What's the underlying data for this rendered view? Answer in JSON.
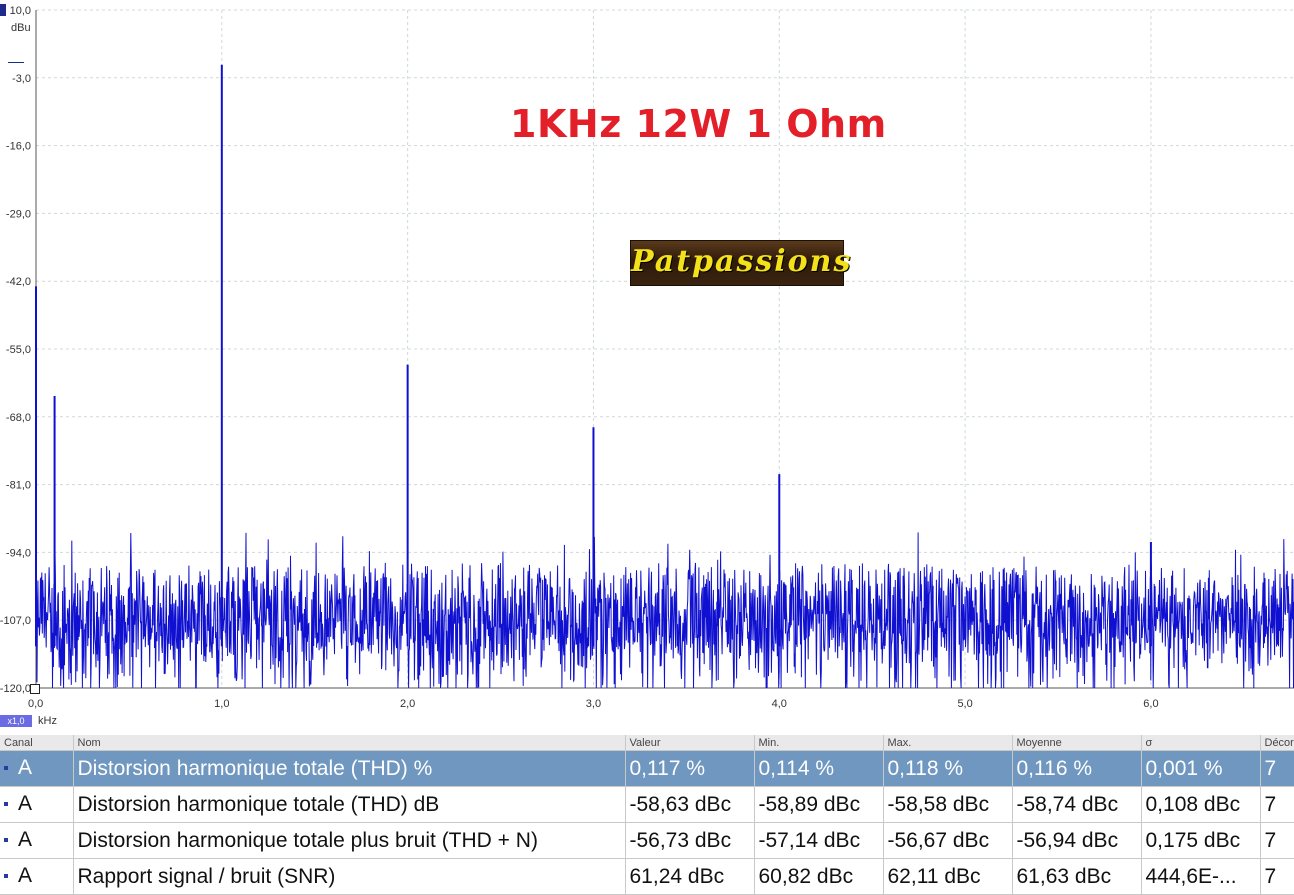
{
  "chart_data": {
    "type": "line",
    "title": "1KHz 12W 1 Ohm",
    "xlabel": "kHz",
    "ylabel": "dBu",
    "xlim": [
      0.0,
      6.77
    ],
    "ylim": [
      -120.0,
      10.0
    ],
    "y_ticks": [
      "10,0",
      "-3,0",
      "-16,0",
      "-29,0",
      "-42,0",
      "-55,0",
      "-68,0",
      "-81,0",
      "-94,0",
      "-107,0",
      "-120,0"
    ],
    "x_ticks": [
      "0,0",
      "1,0",
      "2,0",
      "3,0",
      "4,0",
      "5,0",
      "6,0"
    ],
    "grid": true,
    "series": [
      {
        "color": "#1010d0",
        "noise_floor_db": -104,
        "peaks": [
          {
            "x": 0.0,
            "y": -43
          },
          {
            "x": 0.1,
            "y": -64
          },
          {
            "x": 1.0,
            "y": -0.5
          },
          {
            "x": 2.0,
            "y": -58
          },
          {
            "x": 3.0,
            "y": -70
          },
          {
            "x": 4.0,
            "y": -79
          },
          {
            "x": 6.0,
            "y": -92
          }
        ]
      }
    ]
  },
  "zoom_label": "x1,0",
  "watermark": "Patpassions",
  "table": {
    "headers": [
      "Canal",
      "Nom",
      "Valeur",
      "Min.",
      "Max.",
      "Moyenne",
      "σ",
      "Décor"
    ],
    "rows": [
      {
        "canal": "A",
        "nom": "Distorsion harmonique totale (THD) %",
        "valeur": "0,117 %",
        "min": "0,114 %",
        "max": "0,118 %",
        "moyenne": "0,116 %",
        "sigma": "0,001 %",
        "decor": "7"
      },
      {
        "canal": "A",
        "nom": "Distorsion harmonique totale (THD) dB",
        "valeur": "-58,63 dBc",
        "min": "-58,89 dBc",
        "max": "-58,58 dBc",
        "moyenne": "-58,74 dBc",
        "sigma": "0,108 dBc",
        "decor": "7"
      },
      {
        "canal": "A",
        "nom": "Distorsion harmonique totale plus bruit (THD + N)",
        "valeur": "-56,73 dBc",
        "min": "-57,14 dBc",
        "max": "-56,67 dBc",
        "moyenne": "-56,94 dBc",
        "sigma": "0,175 dBc",
        "decor": "7"
      },
      {
        "canal": "A",
        "nom": "Rapport signal / bruit (SNR)",
        "valeur": "61,24 dBc",
        "min": "60,82 dBc",
        "max": "62,11 dBc",
        "moyenne": "61,63 dBc",
        "sigma": "444,6E-...",
        "decor": "7"
      }
    ]
  }
}
